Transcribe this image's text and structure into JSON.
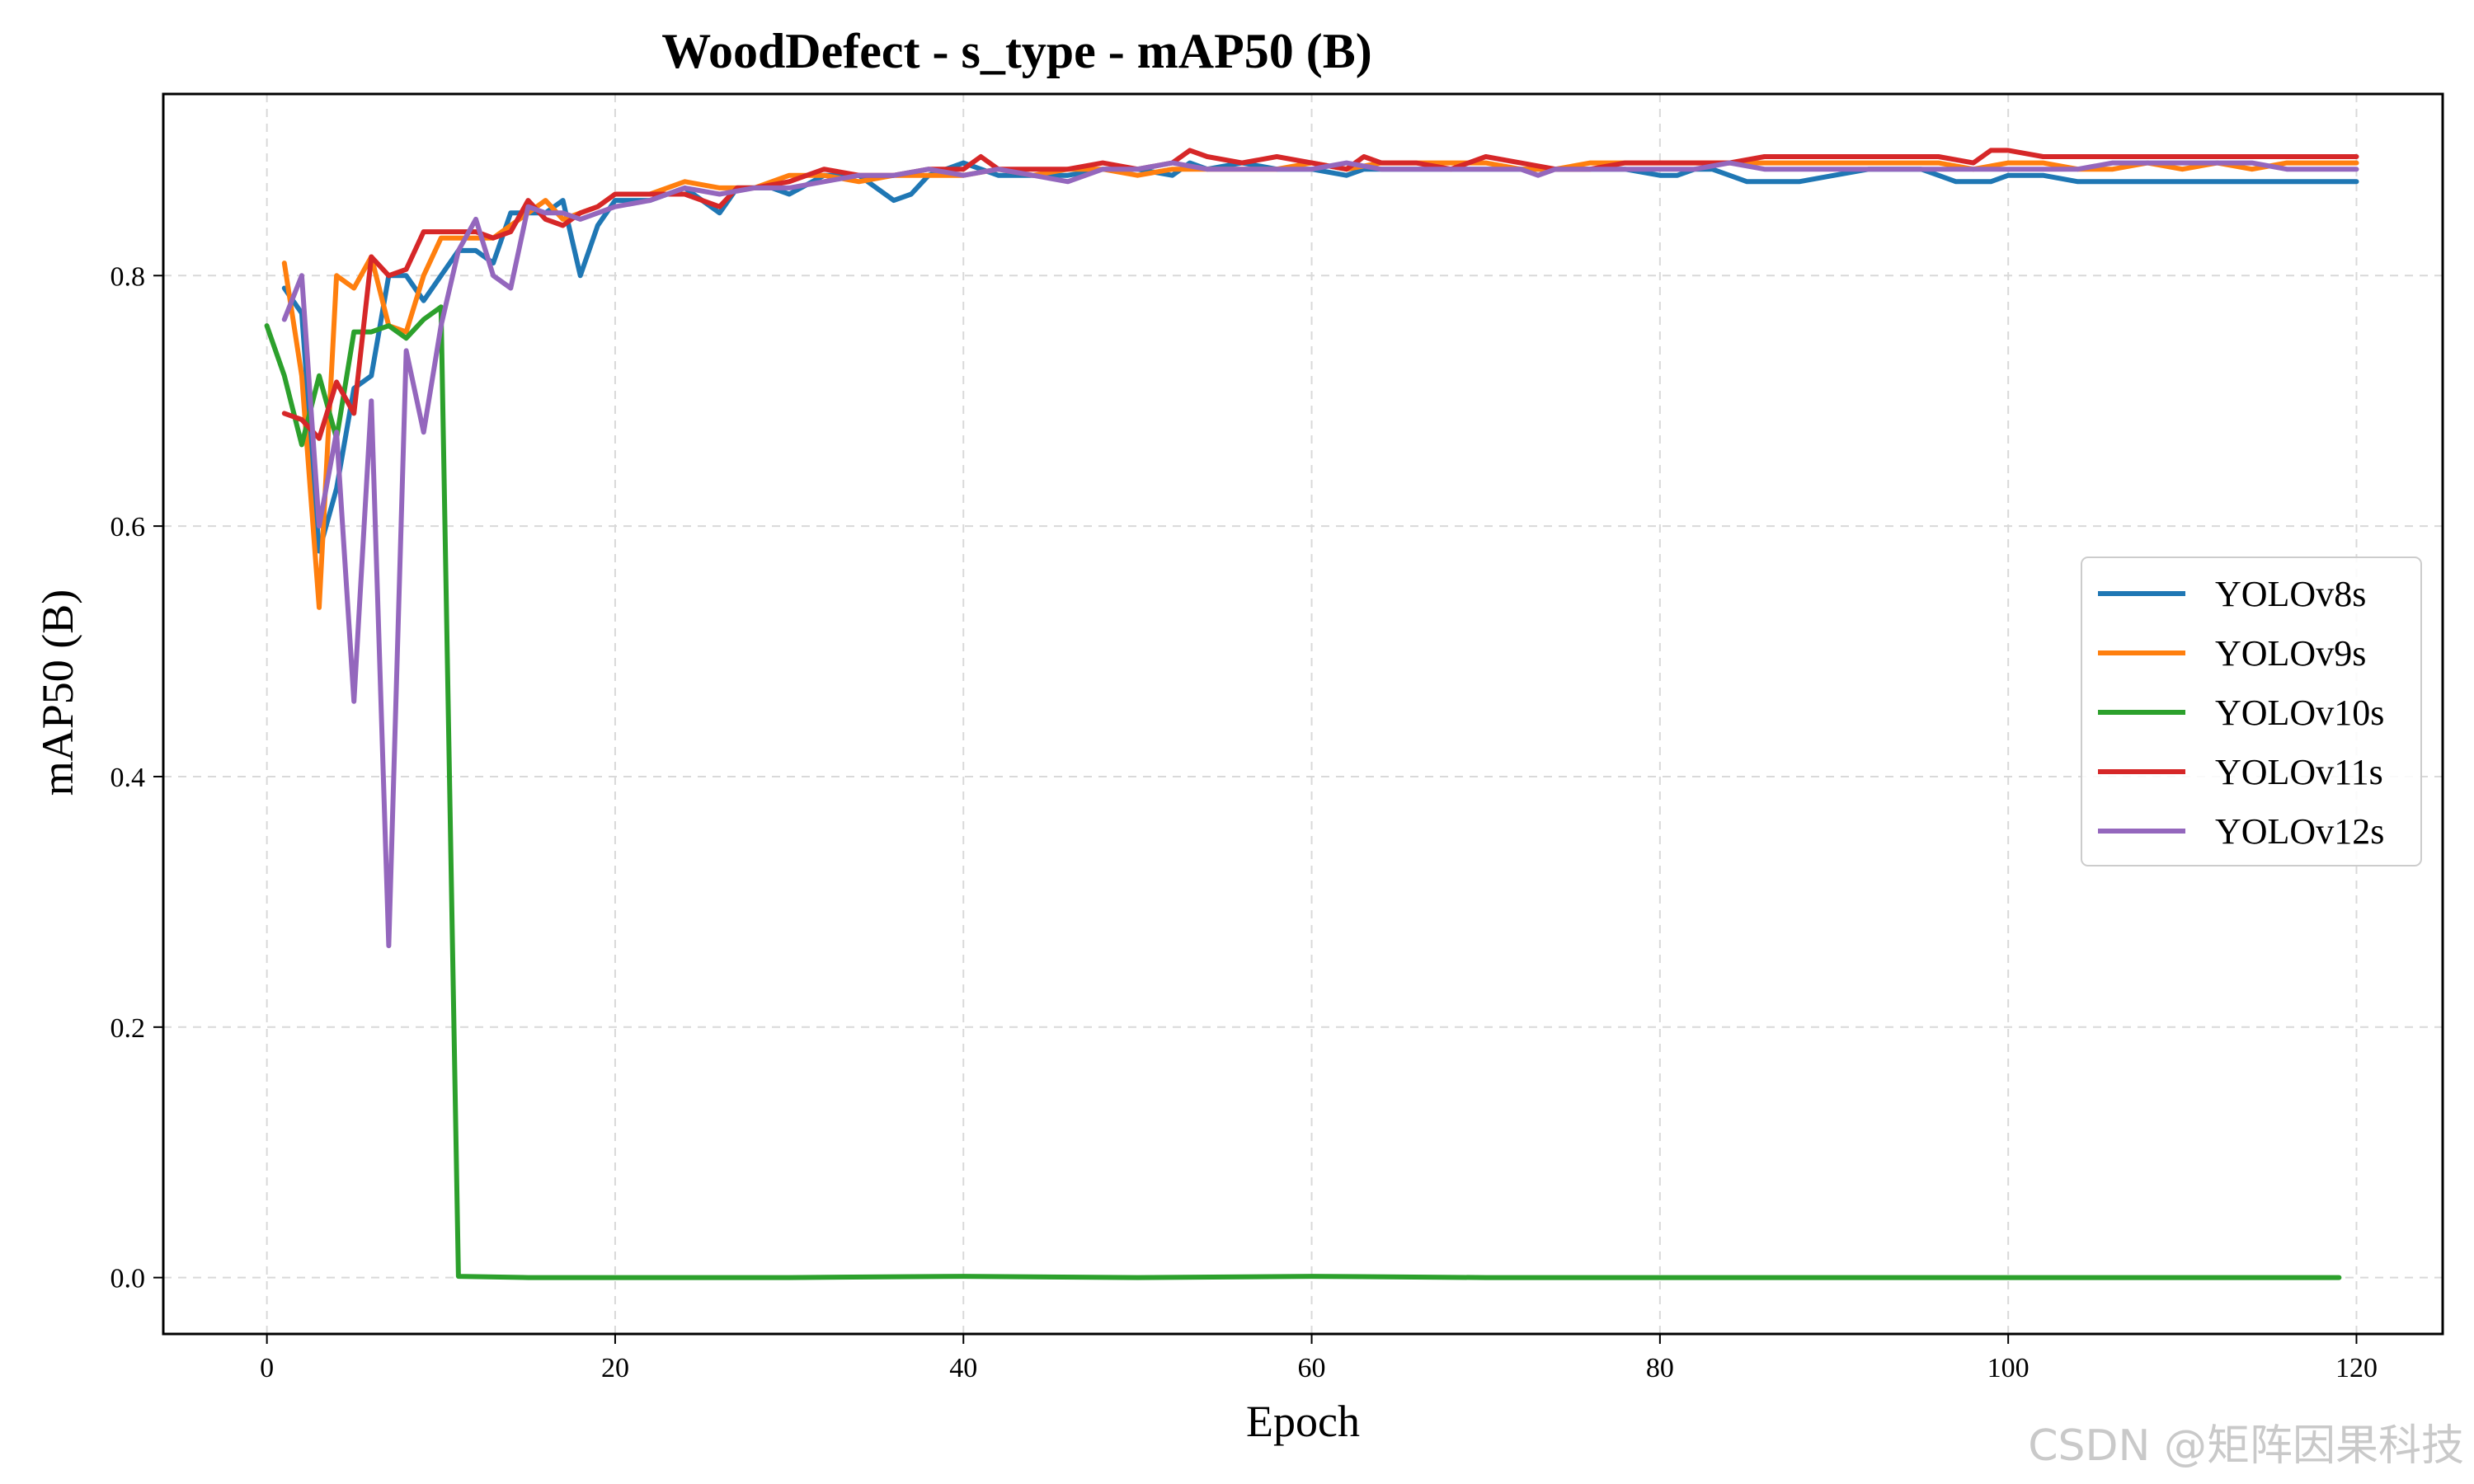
{
  "watermark": "CSDN @矩阵因果科技",
  "chart_data": {
    "type": "line",
    "title": "WoodDefect - s_type - mAP50 (B)",
    "xlabel": "Epoch",
    "ylabel": "mAP50 (B)",
    "xlim": [
      -5.95,
      124.95
    ],
    "ylim": [
      -0.045,
      0.945
    ],
    "xticks": [
      0,
      20,
      40,
      60,
      80,
      100,
      120
    ],
    "yticks": [
      0.0,
      0.2,
      0.4,
      0.6,
      0.8
    ],
    "grid": true,
    "legend_position": "center-right",
    "series": [
      {
        "name": "YOLOv8s",
        "color": "#1f77b4",
        "x": [
          1,
          2,
          3,
          4,
          5,
          6,
          7,
          8,
          9,
          10,
          11,
          12,
          13,
          14,
          15,
          16,
          17,
          18,
          19,
          20,
          22,
          24,
          26,
          27,
          28,
          29,
          30,
          32,
          34,
          36,
          37,
          38,
          40,
          42,
          44,
          46,
          48,
          50,
          52,
          53,
          54,
          56,
          58,
          60,
          62,
          63,
          64,
          66,
          68,
          70,
          72,
          74,
          76,
          78,
          80,
          81,
          82,
          83,
          84,
          85,
          86,
          88,
          90,
          92,
          94,
          95,
          96,
          97,
          98,
          99,
          100,
          102,
          104,
          106,
          108,
          110,
          112,
          114,
          116,
          118,
          120
        ],
        "y": [
          0.79,
          0.77,
          0.58,
          0.63,
          0.71,
          0.72,
          0.8,
          0.8,
          0.78,
          0.8,
          0.82,
          0.82,
          0.81,
          0.85,
          0.85,
          0.85,
          0.86,
          0.8,
          0.84,
          0.86,
          0.86,
          0.87,
          0.85,
          0.87,
          0.87,
          0.87,
          0.865,
          0.88,
          0.88,
          0.86,
          0.865,
          0.88,
          0.89,
          0.88,
          0.88,
          0.88,
          0.885,
          0.885,
          0.88,
          0.89,
          0.885,
          0.89,
          0.885,
          0.885,
          0.88,
          0.885,
          0.885,
          0.885,
          0.885,
          0.885,
          0.885,
          0.885,
          0.885,
          0.885,
          0.88,
          0.88,
          0.885,
          0.885,
          0.88,
          0.875,
          0.875,
          0.875,
          0.88,
          0.885,
          0.885,
          0.885,
          0.88,
          0.875,
          0.875,
          0.875,
          0.88,
          0.88,
          0.875,
          0.875,
          0.875,
          0.875,
          0.875,
          0.875,
          0.875,
          0.875,
          0.875
        ]
      },
      {
        "name": "YOLOv9s",
        "color": "#ff7f0e",
        "x": [
          1,
          2,
          3,
          4,
          5,
          6,
          7,
          8,
          9,
          10,
          11,
          12,
          13,
          14,
          15,
          16,
          17,
          18,
          19,
          20,
          22,
          24,
          26,
          28,
          30,
          32,
          34,
          36,
          38,
          40,
          42,
          44,
          46,
          48,
          50,
          52,
          54,
          56,
          58,
          60,
          62,
          64,
          66,
          68,
          70,
          72,
          74,
          76,
          78,
          80,
          82,
          84,
          86,
          88,
          90,
          92,
          94,
          96,
          98,
          100,
          102,
          104,
          106,
          108,
          110,
          112,
          114,
          116,
          118,
          120
        ],
        "y": [
          0.81,
          0.72,
          0.535,
          0.8,
          0.79,
          0.815,
          0.76,
          0.755,
          0.8,
          0.83,
          0.83,
          0.83,
          0.83,
          0.84,
          0.85,
          0.86,
          0.845,
          0.85,
          0.855,
          0.865,
          0.865,
          0.875,
          0.87,
          0.87,
          0.88,
          0.88,
          0.875,
          0.88,
          0.88,
          0.88,
          0.885,
          0.88,
          0.885,
          0.885,
          0.88,
          0.885,
          0.885,
          0.885,
          0.885,
          0.89,
          0.885,
          0.89,
          0.89,
          0.89,
          0.89,
          0.885,
          0.885,
          0.89,
          0.89,
          0.89,
          0.89,
          0.89,
          0.89,
          0.89,
          0.89,
          0.89,
          0.89,
          0.89,
          0.885,
          0.89,
          0.89,
          0.885,
          0.885,
          0.89,
          0.885,
          0.89,
          0.885,
          0.89,
          0.89,
          0.89
        ]
      },
      {
        "name": "YOLOv10s",
        "color": "#2ca02c",
        "x": [
          0,
          1,
          2,
          3,
          4,
          5,
          6,
          7,
          8,
          9,
          10,
          11,
          15,
          20,
          25,
          30,
          40,
          50,
          60,
          70,
          80,
          90,
          100,
          110,
          119
        ],
        "y": [
          0.76,
          0.72,
          0.665,
          0.72,
          0.67,
          0.755,
          0.755,
          0.76,
          0.75,
          0.765,
          0.775,
          0.001,
          0.0,
          0.0,
          0.0,
          0.0,
          0.001,
          0.0,
          0.001,
          0.0,
          0.0,
          0.0,
          0.0,
          0.0,
          0.0
        ]
      },
      {
        "name": "YOLOv11s",
        "color": "#d62728",
        "x": [
          1,
          2,
          3,
          4,
          5,
          6,
          7,
          8,
          9,
          10,
          12,
          13,
          14,
          15,
          16,
          17,
          18,
          19,
          20,
          22,
          24,
          26,
          27,
          28,
          30,
          32,
          34,
          36,
          38,
          40,
          41,
          42,
          44,
          46,
          48,
          50,
          52,
          53,
          54,
          56,
          58,
          60,
          62,
          63,
          64,
          66,
          68,
          70,
          72,
          74,
          76,
          78,
          80,
          82,
          84,
          86,
          88,
          90,
          92,
          94,
          96,
          98,
          99,
          100,
          102,
          104,
          106,
          108,
          110,
          112,
          114,
          116,
          118,
          120
        ],
        "y": [
          0.69,
          0.685,
          0.67,
          0.715,
          0.69,
          0.815,
          0.8,
          0.805,
          0.835,
          0.835,
          0.835,
          0.83,
          0.835,
          0.86,
          0.845,
          0.84,
          0.85,
          0.855,
          0.865,
          0.865,
          0.865,
          0.855,
          0.87,
          0.87,
          0.875,
          0.885,
          0.88,
          0.88,
          0.885,
          0.885,
          0.895,
          0.885,
          0.885,
          0.885,
          0.89,
          0.885,
          0.89,
          0.9,
          0.895,
          0.89,
          0.895,
          0.89,
          0.885,
          0.895,
          0.89,
          0.89,
          0.885,
          0.895,
          0.89,
          0.885,
          0.885,
          0.89,
          0.89,
          0.89,
          0.89,
          0.895,
          0.895,
          0.895,
          0.895,
          0.895,
          0.895,
          0.89,
          0.9,
          0.9,
          0.895,
          0.895,
          0.895,
          0.895,
          0.895,
          0.895,
          0.895,
          0.895,
          0.895,
          0.895
        ]
      },
      {
        "name": "YOLOv12s",
        "color": "#9467bd",
        "x": [
          1,
          2,
          3,
          4,
          5,
          6,
          7,
          8,
          9,
          10,
          11,
          12,
          13,
          14,
          15,
          16,
          17,
          18,
          19,
          20,
          22,
          24,
          26,
          28,
          30,
          32,
          34,
          36,
          38,
          40,
          42,
          44,
          46,
          48,
          50,
          52,
          54,
          56,
          58,
          60,
          62,
          64,
          66,
          68,
          70,
          72,
          73,
          74,
          76,
          78,
          80,
          82,
          84,
          86,
          88,
          90,
          92,
          94,
          96,
          98,
          100,
          102,
          104,
          106,
          108,
          110,
          112,
          114,
          116,
          118,
          120
        ],
        "y": [
          0.765,
          0.8,
          0.6,
          0.675,
          0.46,
          0.7,
          0.265,
          0.74,
          0.675,
          0.76,
          0.82,
          0.845,
          0.8,
          0.79,
          0.855,
          0.85,
          0.85,
          0.845,
          0.85,
          0.855,
          0.86,
          0.87,
          0.865,
          0.87,
          0.87,
          0.875,
          0.88,
          0.88,
          0.885,
          0.88,
          0.885,
          0.88,
          0.875,
          0.885,
          0.885,
          0.89,
          0.885,
          0.885,
          0.885,
          0.885,
          0.89,
          0.885,
          0.885,
          0.885,
          0.885,
          0.885,
          0.88,
          0.885,
          0.885,
          0.885,
          0.885,
          0.885,
          0.89,
          0.885,
          0.885,
          0.885,
          0.885,
          0.885,
          0.885,
          0.885,
          0.885,
          0.885,
          0.885,
          0.89,
          0.89,
          0.89,
          0.89,
          0.89,
          0.885,
          0.885,
          0.885
        ]
      }
    ]
  }
}
